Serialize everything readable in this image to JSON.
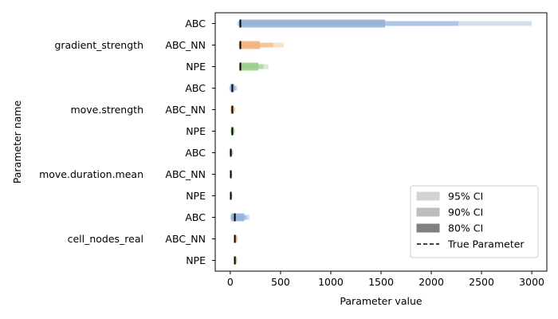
{
  "chart_data": {
    "type": "interval",
    "xlabel": "Parameter value",
    "ylabel": "Parameter name",
    "xlim": [
      -150,
      3150
    ],
    "xticks": [
      0,
      500,
      1000,
      1500,
      2000,
      2500,
      3000
    ],
    "method_colors": {
      "ABC": "#8fb0d8",
      "ABC_NN": "#f0b27a",
      "NPE": "#98cc88"
    },
    "true_marker_color": "#000000",
    "groups": [
      {
        "parameter": "gradient_strength",
        "true_value": 100,
        "rows": [
          {
            "method": "ABC",
            "ci95": [
              70,
              3000
            ],
            "ci90": [
              80,
              2270
            ],
            "ci80": [
              90,
              1540
            ]
          },
          {
            "method": "ABC_NN",
            "ci95": [
              80,
              530
            ],
            "ci90": [
              85,
              430
            ],
            "ci80": [
              90,
              295
            ]
          },
          {
            "method": "NPE",
            "ci95": [
              85,
              380
            ],
            "ci90": [
              90,
              330
            ],
            "ci80": [
              95,
              280
            ]
          }
        ]
      },
      {
        "parameter": "move.strength",
        "true_value": 20,
        "rows": [
          {
            "method": "ABC",
            "ci95": [
              -10,
              70
            ],
            "ci90": [
              -5,
              55
            ],
            "ci80": [
              0,
              40
            ]
          },
          {
            "method": "ABC_NN",
            "ci95": [
              0,
              50
            ],
            "ci90": [
              3,
              42
            ],
            "ci80": [
              5,
              35
            ]
          },
          {
            "method": "NPE",
            "ci95": [
              2,
              45
            ],
            "ci90": [
              5,
              40
            ],
            "ci80": [
              8,
              35
            ]
          }
        ]
      },
      {
        "parameter": "move.duration.mean",
        "true_value": 5,
        "rows": [
          {
            "method": "ABC",
            "ci95": [
              -10,
              30
            ],
            "ci90": [
              -5,
              22
            ],
            "ci80": [
              0,
              15
            ]
          },
          {
            "method": "ABC_NN",
            "ci95": [
              -5,
              22
            ],
            "ci90": [
              -2,
              18
            ],
            "ci80": [
              0,
              12
            ]
          },
          {
            "method": "NPE",
            "ci95": [
              -5,
              22
            ],
            "ci90": [
              -2,
              18
            ],
            "ci80": [
              0,
              12
            ]
          }
        ]
      },
      {
        "parameter": "cell_nodes_real",
        "true_value": 45,
        "rows": [
          {
            "method": "ABC",
            "ci95": [
              0,
              190
            ],
            "ci90": [
              5,
              165
            ],
            "ci80": [
              10,
              140
            ]
          },
          {
            "method": "ABC_NN",
            "ci95": [
              35,
              75
            ],
            "ci90": [
              38,
              70
            ],
            "ci80": [
              40,
              65
            ]
          },
          {
            "method": "NPE",
            "ci95": [
              35,
              70
            ],
            "ci90": [
              38,
              65
            ],
            "ci80": [
              40,
              60
            ]
          }
        ]
      }
    ],
    "legend": {
      "position": "lower-right",
      "entries": [
        {
          "label": "95% CI",
          "kind": "patch",
          "color": "#d3d3d3"
        },
        {
          "label": "90% CI",
          "kind": "patch",
          "color": "#bdbdbd"
        },
        {
          "label": "80% CI",
          "kind": "patch",
          "color": "#808080"
        },
        {
          "label": "True Parameter",
          "kind": "dashed-line",
          "color": "#000000"
        }
      ]
    }
  }
}
